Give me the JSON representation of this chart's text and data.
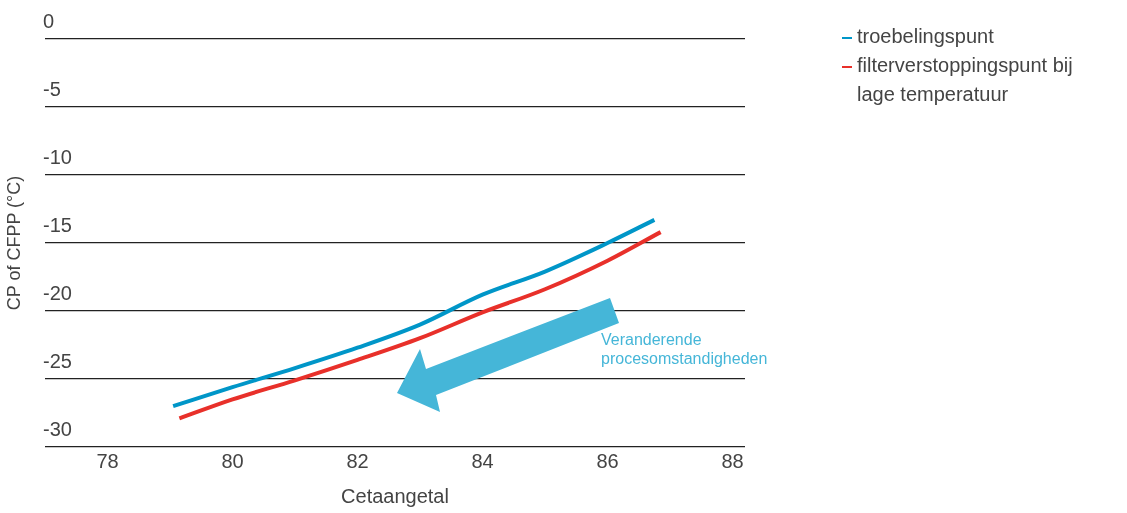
{
  "chart_data": {
    "type": "line",
    "xlabel": "Cetaangetal",
    "ylabel": "CP of CFPP (°C)",
    "xlim": [
      77,
      88.2
    ],
    "xticks": [
      78,
      80,
      82,
      84,
      86,
      88
    ],
    "ylim": [
      -30,
      0
    ],
    "yticks": [
      0,
      -5,
      -10,
      -15,
      -20,
      -25,
      -30
    ],
    "grid": "y",
    "legend": "top right",
    "marker": "none",
    "line_style": "solid",
    "annotations": [
      "Veranderende procesomstandigheden"
    ],
    "series": [
      {
        "name": "troebelingspunt",
        "color": "#0096c8",
        "x": [
          79.05,
          80,
          81,
          82,
          83,
          84,
          85,
          86,
          86.75
        ],
        "values": [
          -27.0,
          -25.6,
          -24.2,
          -22.7,
          -21.0,
          -18.8,
          -17.1,
          -15.0,
          -13.3
        ]
      },
      {
        "name": "filterverstoppingspunt bij lage temperatuur",
        "color": "#e8302a",
        "x": [
          79.15,
          80,
          81,
          82,
          83,
          84,
          85,
          86,
          86.85
        ],
        "values": [
          -27.9,
          -26.5,
          -25.1,
          -23.6,
          -22.0,
          -20.1,
          -18.4,
          -16.3,
          -14.2
        ]
      }
    ]
  }
}
